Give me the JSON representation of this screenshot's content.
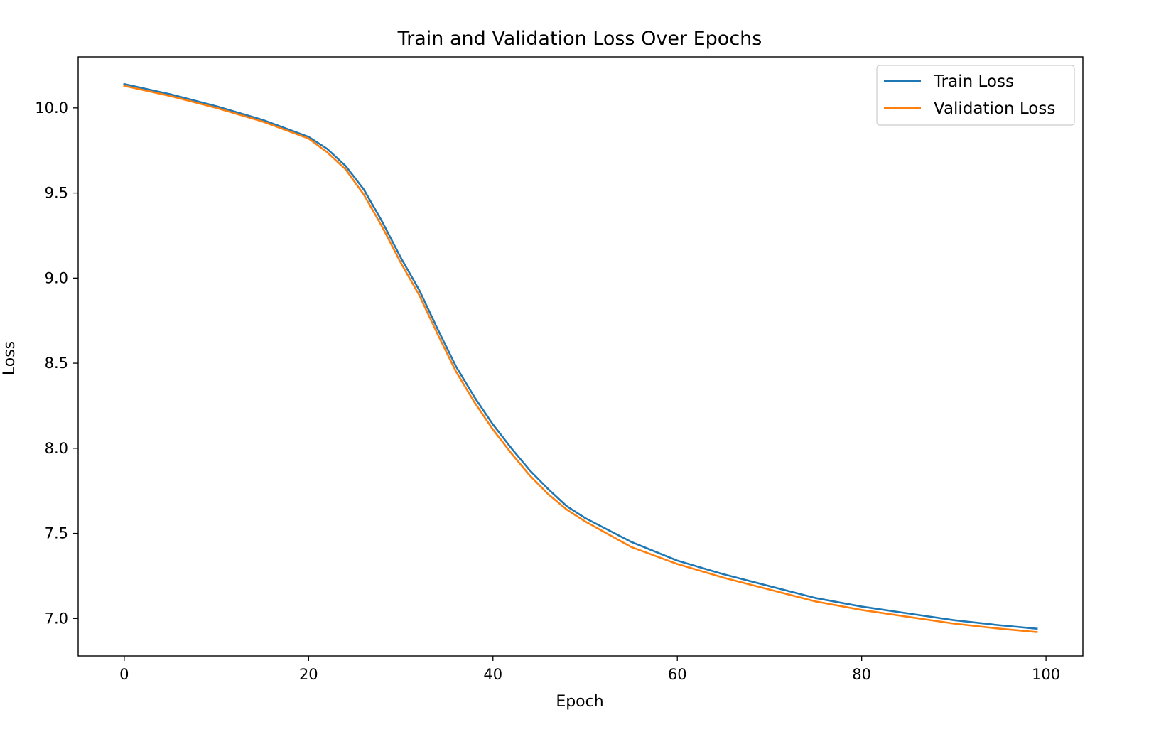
{
  "chart_data": {
    "type": "line",
    "title": "Train and Validation Loss Over Epochs",
    "xlabel": "Epoch",
    "ylabel": "Loss",
    "xlim": [
      -5,
      104
    ],
    "ylim": [
      6.78,
      10.3
    ],
    "xticks": [
      0,
      20,
      40,
      60,
      80,
      100
    ],
    "yticks": [
      7.0,
      7.5,
      8.0,
      8.5,
      9.0,
      9.5,
      10.0
    ],
    "xtick_labels": [
      "0",
      "20",
      "40",
      "60",
      "80",
      "100"
    ],
    "ytick_labels": [
      "7.0",
      "7.5",
      "8.0",
      "8.5",
      "9.0",
      "9.5",
      "10.0"
    ],
    "grid": false,
    "legend_position": "top-right",
    "series": [
      {
        "name": "Train Loss",
        "color": "#1f77b4",
        "x": [
          0,
          5,
          10,
          15,
          20,
          22,
          24,
          26,
          28,
          30,
          32,
          34,
          36,
          38,
          40,
          42,
          44,
          46,
          48,
          50,
          55,
          60,
          65,
          70,
          75,
          80,
          85,
          90,
          95,
          99
        ],
        "y": [
          10.14,
          10.08,
          10.01,
          9.93,
          9.83,
          9.76,
          9.66,
          9.52,
          9.33,
          9.12,
          8.93,
          8.7,
          8.48,
          8.3,
          8.14,
          8.0,
          7.87,
          7.76,
          7.66,
          7.59,
          7.45,
          7.34,
          7.26,
          7.19,
          7.12,
          7.07,
          7.03,
          6.99,
          6.96,
          6.94
        ]
      },
      {
        "name": "Validation Loss",
        "color": "#ff7f0e",
        "x": [
          0,
          5,
          10,
          15,
          20,
          22,
          24,
          26,
          28,
          30,
          32,
          34,
          36,
          38,
          40,
          42,
          44,
          46,
          48,
          50,
          55,
          60,
          65,
          70,
          75,
          80,
          85,
          90,
          95,
          99
        ],
        "y": [
          10.13,
          10.07,
          10.0,
          9.92,
          9.82,
          9.74,
          9.64,
          9.49,
          9.3,
          9.09,
          8.9,
          8.67,
          8.45,
          8.27,
          8.11,
          7.97,
          7.84,
          7.73,
          7.64,
          7.57,
          7.42,
          7.32,
          7.24,
          7.17,
          7.1,
          7.05,
          7.01,
          6.97,
          6.94,
          6.92
        ]
      }
    ]
  }
}
